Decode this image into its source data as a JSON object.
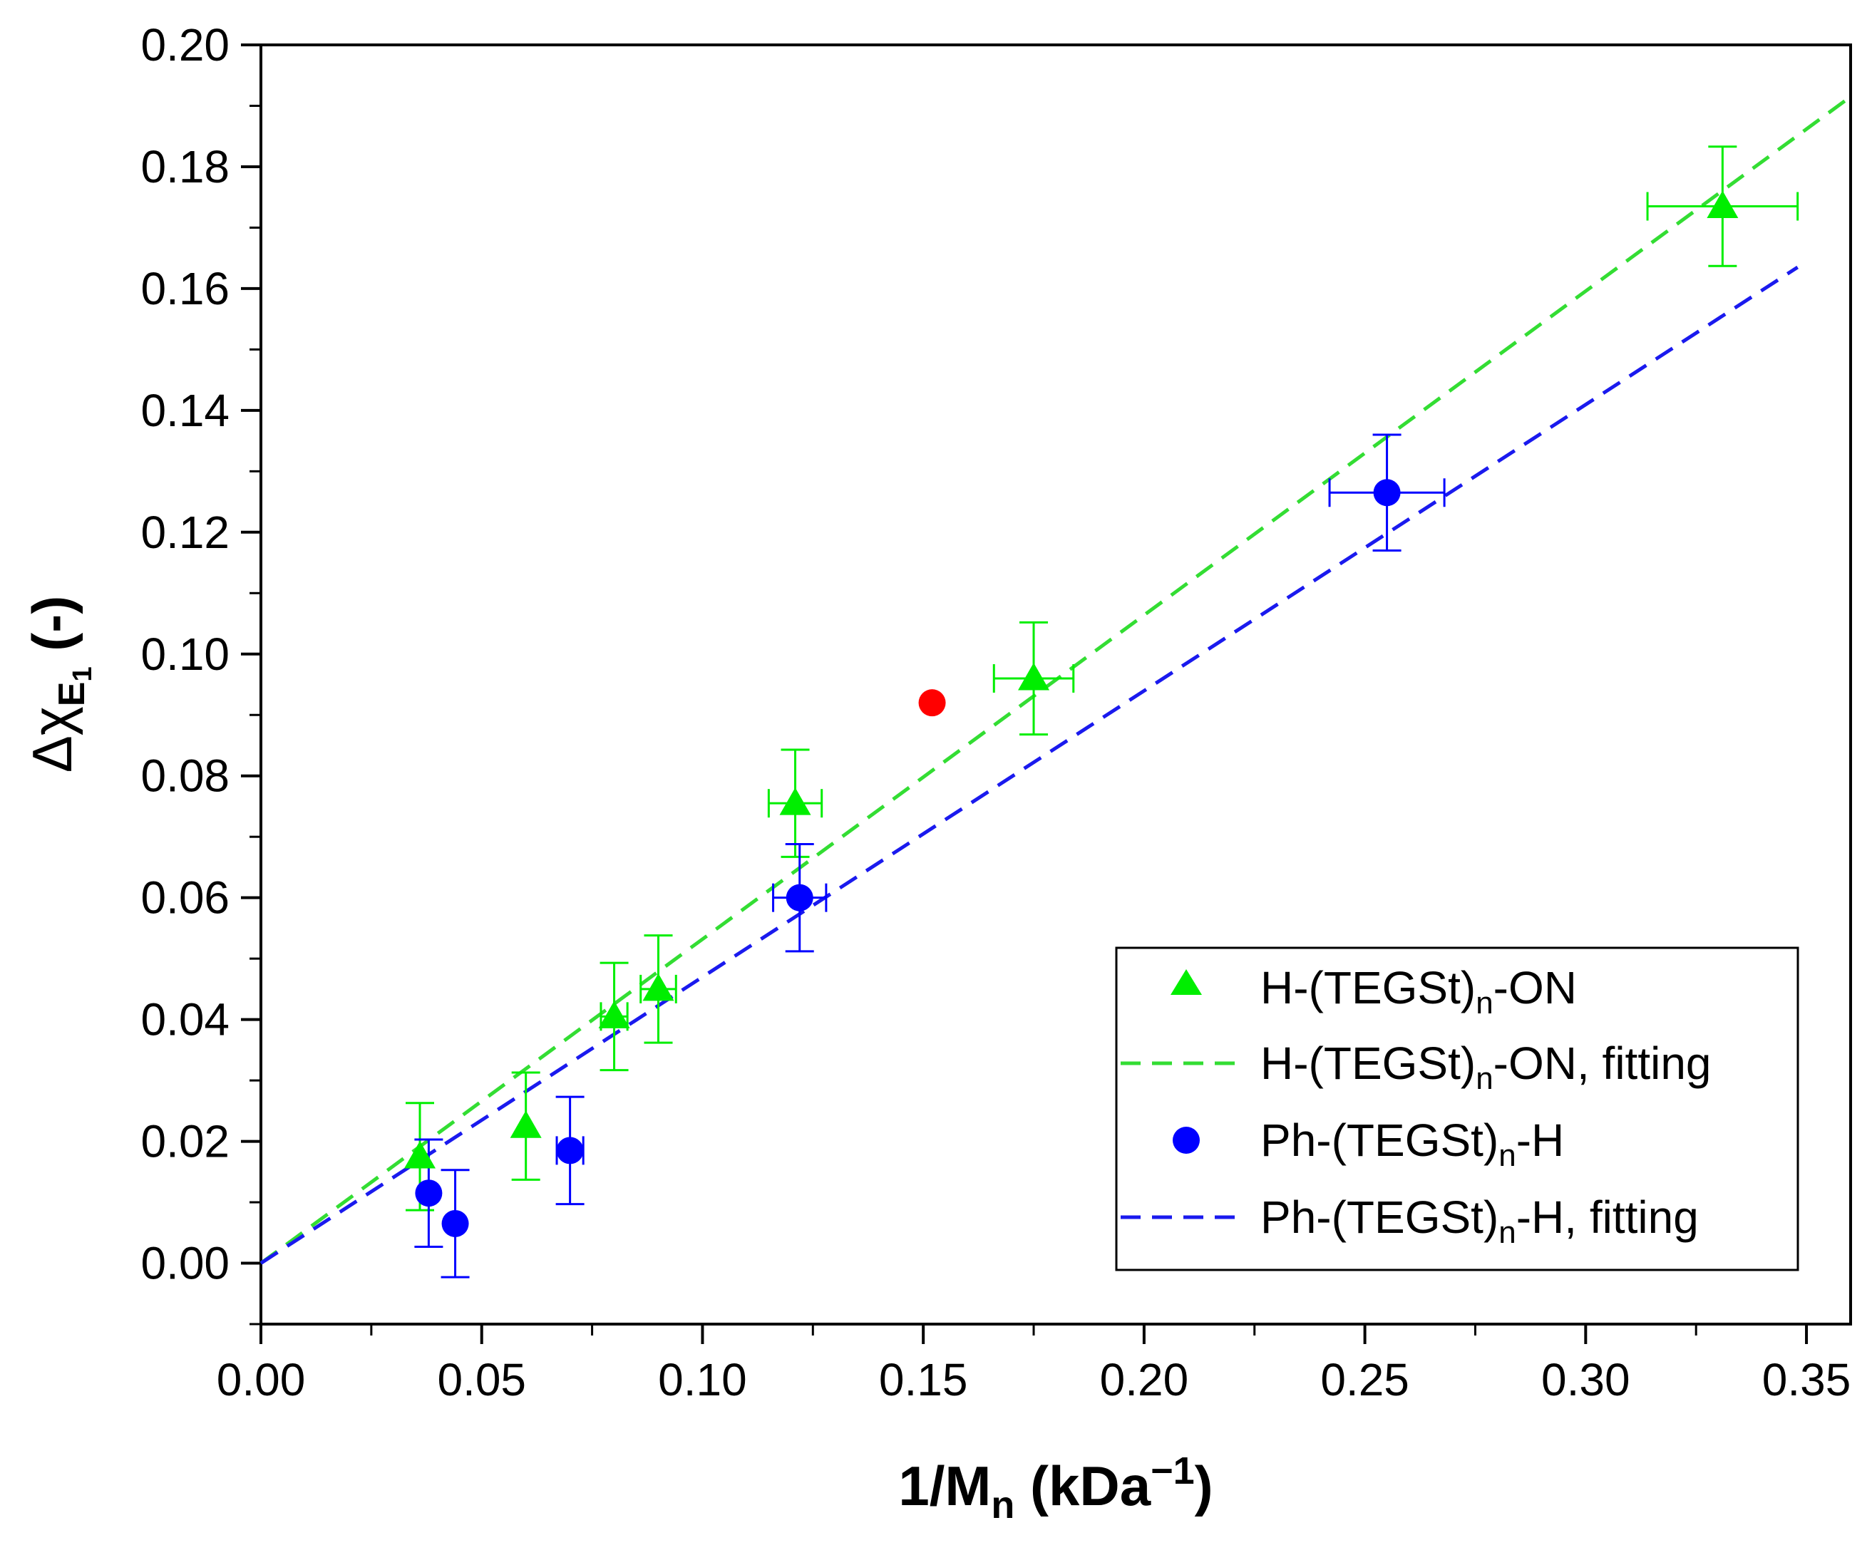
{
  "chart_data": {
    "type": "scatter",
    "title": "",
    "xlabel": {
      "main": "1/M",
      "sub": "n",
      "rest": " (kDa",
      "sup": "−1",
      "close": ")"
    },
    "ylabel": {
      "main": "Δχ",
      "sub": "E",
      "subsub": "1",
      "rest": " (-)"
    },
    "xlim": [
      0.0,
      0.36
    ],
    "ylim": [
      -0.01,
      0.2
    ],
    "xticks": [
      "0.00",
      "0.05",
      "0.10",
      "0.15",
      "0.20",
      "0.25",
      "0.30",
      "0.35"
    ],
    "yticks": [
      "0.00",
      "0.02",
      "0.04",
      "0.06",
      "0.08",
      "0.10",
      "0.12",
      "0.14",
      "0.16",
      "0.18",
      "0.20"
    ],
    "grid": false,
    "legend_position": "bottom-right",
    "series": [
      {
        "name": {
          "a": "H-(TEGSt)",
          "sub": "n",
          "b": "-ON"
        },
        "kind": "points",
        "marker": "triangle",
        "color": "#00ee00",
        "points": [
          {
            "x": 0.036,
            "y": 0.0175,
            "yerr": 0.0088,
            "xerr": 0
          },
          {
            "x": 0.06,
            "y": 0.0225,
            "yerr": 0.0088,
            "xerr": 0
          },
          {
            "x": 0.08,
            "y": 0.0405,
            "yerr": 0.0088,
            "xerr": 0.003
          },
          {
            "x": 0.09,
            "y": 0.045,
            "yerr": 0.0088,
            "xerr": 0.004
          },
          {
            "x": 0.121,
            "y": 0.0755,
            "yerr": 0.0088,
            "xerr": 0.006
          },
          {
            "x": 0.175,
            "y": 0.096,
            "yerr": 0.0092,
            "xerr": 0.009
          },
          {
            "x": 0.331,
            "y": 0.1735,
            "yerr": 0.0098,
            "xerr": 0.017
          }
        ]
      },
      {
        "name": {
          "a": "H-(TEGSt)",
          "sub": "n",
          "b": "-ON, fitting"
        },
        "kind": "line",
        "color": "#33dd33",
        "points": [
          {
            "x": 0.0,
            "y": 0.0
          },
          {
            "x": 0.36,
            "y": 0.1915
          }
        ]
      },
      {
        "name": {
          "a": "Ph-(TEGSt)",
          "sub": "n",
          "b": "-H"
        },
        "kind": "points",
        "marker": "circle",
        "color": "#0000ff",
        "points": [
          {
            "x": 0.038,
            "y": 0.0115,
            "yerr": 0.0088,
            "xerr": 0
          },
          {
            "x": 0.044,
            "y": 0.0065,
            "yerr": 0.0088,
            "xerr": 0
          },
          {
            "x": 0.07,
            "y": 0.0185,
            "yerr": 0.0088,
            "xerr": 0.003
          },
          {
            "x": 0.122,
            "y": 0.06,
            "yerr": 0.0088,
            "xerr": 0.006
          },
          {
            "x": 0.255,
            "y": 0.1265,
            "yerr": 0.0095,
            "xerr": 0.013
          }
        ]
      },
      {
        "name": {
          "a": "Ph-(TEGSt)",
          "sub": "n",
          "b": "-H, fitting"
        },
        "kind": "line",
        "color": "#1a1aee",
        "points": [
          {
            "x": 0.0,
            "y": 0.0
          },
          {
            "x": 0.348,
            "y": 0.1635
          }
        ]
      }
    ],
    "extra_points": [
      {
        "x": 0.152,
        "y": 0.092,
        "color": "#ff0000",
        "marker": "circle"
      }
    ]
  }
}
